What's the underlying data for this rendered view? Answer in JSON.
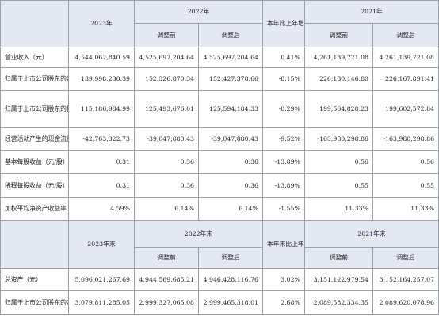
{
  "table1": {
    "header": {
      "col_2023": "2023年",
      "col_2022": "2022年",
      "col_change": "本年比上年增减",
      "col_2021": "2021年",
      "before_adj": "调整前",
      "after_adj": "调整后"
    },
    "rows": [
      {
        "label": "营业收入（元）",
        "v2023": "4,544,067,840.59",
        "v2022_before": "4,525,697,204.64",
        "v2022_after": "4,525,697,204.64",
        "change": "0.41%",
        "v2021_before": "4,261,139,721.08",
        "v2021_after": "4,261,139,721.08"
      },
      {
        "label": "归属于上市公司股东的净利润（元）",
        "v2023": "139,998,230.39",
        "v2022_before": "152,326,870.34",
        "v2022_after": "152,427,378.66",
        "change": "-8.15%",
        "v2021_before": "226,130,146.80",
        "v2021_after": "226,167,891.41"
      },
      {
        "label": "归属于上市公司股东的扣除非经常性损益的净利润（元）",
        "v2023": "115,186,984.99",
        "v2022_before": "125,493,676.01",
        "v2022_after": "125,594,184.33",
        "change": "-8.29%",
        "v2021_before": "199,564,828.23",
        "v2021_after": "199,602,572.84"
      },
      {
        "label": "经营活动产生的现金流量净额（元）",
        "v2023": "-42,763,322.73",
        "v2022_before": "-39,047,880.43",
        "v2022_after": "-39,047,880.43",
        "change": "-9.52%",
        "v2021_before": "-163,980,298.86",
        "v2021_after": "-163,980,298.86"
      },
      {
        "label": "基本每股收益（元/股）",
        "v2023": "0.31",
        "v2022_before": "0.36",
        "v2022_after": "0.36",
        "change": "-13.89%",
        "v2021_before": "0.56",
        "v2021_after": "0.56"
      },
      {
        "label": "稀释每股收益（元/股）",
        "v2023": "0.31",
        "v2022_before": "0.36",
        "v2022_after": "0.36",
        "change": "-13.89%",
        "v2021_before": "0.55",
        "v2021_after": "0.55"
      },
      {
        "label": "加权平均净资产收益率",
        "v2023": "4.59%",
        "v2022_before": "6.14%",
        "v2022_after": "6.14%",
        "change": "-1.55%",
        "v2021_before": "11.33%",
        "v2021_after": "11.33%"
      }
    ]
  },
  "table2": {
    "header": {
      "col_2023": "2023年末",
      "col_2022": "2022年末",
      "col_change": "本年末比上年末增减",
      "col_2021": "2021年末",
      "before_adj": "调整前",
      "after_adj": "调整后"
    },
    "rows": [
      {
        "label": "总资产（元）",
        "v2023": "5,096,021,267.69",
        "v2022_before": "4,944,569,685.21",
        "v2022_after": "4,946,428,116.76",
        "change": "3.02%",
        "v2021_before": "3,151,122,979.54",
        "v2021_after": "3,152,164,257.07"
      },
      {
        "label": "归属于上市公司股东的净资产（元）",
        "v2023": "3,079,811,285.05",
        "v2022_before": "2,999,327,065.08",
        "v2022_after": "2,999,465,318.01",
        "change": "2.68%",
        "v2021_before": "2,089,582,334.35",
        "v2021_after": "2,089,620,078.96"
      }
    ]
  }
}
